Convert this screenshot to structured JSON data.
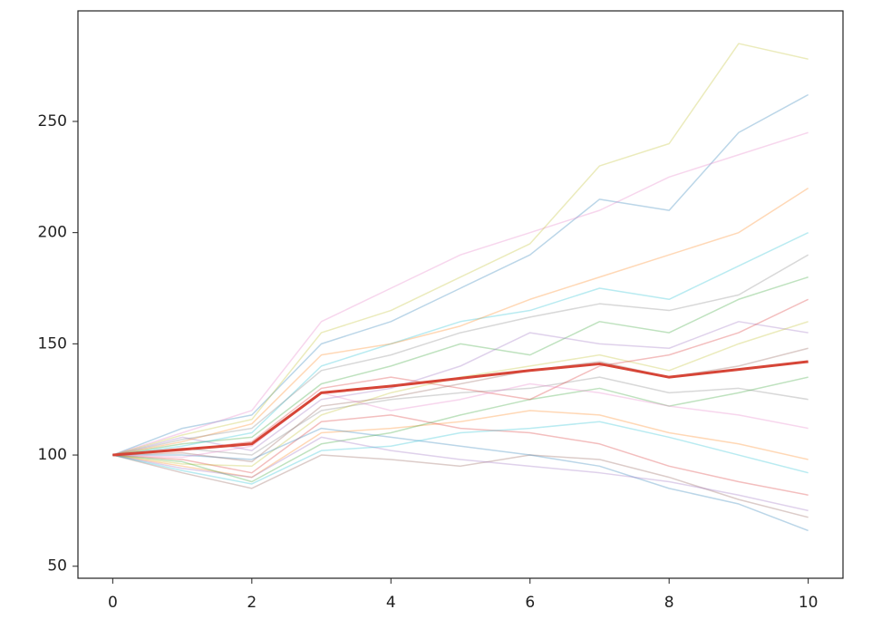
{
  "chart_data": {
    "type": "line",
    "x": [
      0,
      1,
      2,
      3,
      4,
      5,
      6,
      7,
      8,
      9,
      10
    ],
    "xlim": [
      -0.5,
      10.5
    ],
    "xticks": [
      0,
      2,
      4,
      6,
      8,
      10
    ],
    "ylim": [
      44.6,
      299.7
    ],
    "yticks": [
      50,
      100,
      150,
      200,
      250
    ],
    "series": [
      {
        "color": "#1f77b4",
        "values": [
          100,
          112,
          118,
          150,
          160,
          175,
          190,
          215,
          210,
          245,
          262
        ]
      },
      {
        "color": "#ff7f0e",
        "values": [
          100,
          95,
          90,
          110,
          112,
          115,
          120,
          118,
          110,
          105,
          98
        ]
      },
      {
        "color": "#2ca02c",
        "values": [
          100,
          105,
          108,
          132,
          140,
          150,
          145,
          160,
          155,
          170,
          180
        ]
      },
      {
        "color": "#d62728",
        "values": [
          100,
          98,
          92,
          115,
          118,
          112,
          110,
          105,
          95,
          88,
          82
        ]
      },
      {
        "color": "#9467bd",
        "values": [
          100,
          108,
          102,
          125,
          130,
          140,
          155,
          150,
          148,
          160,
          155
        ]
      },
      {
        "color": "#8c564b",
        "values": [
          100,
          92,
          85,
          100,
          98,
          95,
          100,
          98,
          90,
          80,
          72
        ]
      },
      {
        "color": "#e377c2",
        "values": [
          100,
          110,
          120,
          160,
          175,
          190,
          200,
          210,
          225,
          235,
          245
        ]
      },
      {
        "color": "#7f7f7f",
        "values": [
          100,
          103,
          100,
          120,
          125,
          128,
          130,
          135,
          128,
          130,
          125
        ]
      },
      {
        "color": "#bcbd22",
        "values": [
          100,
          96,
          95,
          118,
          128,
          135,
          140,
          145,
          138,
          150,
          160
        ]
      },
      {
        "color": "#17becf",
        "values": [
          100,
          104,
          110,
          140,
          150,
          160,
          165,
          175,
          170,
          185,
          200
        ]
      },
      {
        "color": "#1f77b4",
        "values": [
          100,
          100,
          98,
          112,
          108,
          104,
          100,
          95,
          85,
          78,
          66
        ]
      },
      {
        "color": "#ff7f0e",
        "values": [
          100,
          106,
          114,
          145,
          150,
          158,
          170,
          180,
          190,
          200,
          220
        ]
      },
      {
        "color": "#2ca02c",
        "values": [
          100,
          97,
          88,
          105,
          110,
          118,
          125,
          130,
          122,
          128,
          135
        ]
      },
      {
        "color": "#d62728",
        "values": [
          100,
          102,
          106,
          130,
          135,
          130,
          125,
          140,
          145,
          155,
          170
        ]
      },
      {
        "color": "#9467bd",
        "values": [
          100,
          94,
          90,
          108,
          102,
          98,
          95,
          92,
          88,
          82,
          75
        ]
      },
      {
        "color": "#bcbd22",
        "values": [
          100,
          109,
          116,
          155,
          165,
          180,
          195,
          230,
          240,
          285,
          278
        ]
      },
      {
        "color": "#8c564b",
        "values": [
          100,
          101,
          97,
          122,
          126,
          132,
          138,
          142,
          135,
          140,
          148
        ]
      },
      {
        "color": "#e377c2",
        "values": [
          100,
          99,
          104,
          128,
          120,
          125,
          132,
          128,
          122,
          118,
          112
        ]
      },
      {
        "color": "#7f7f7f",
        "values": [
          100,
          107,
          112,
          138,
          145,
          155,
          162,
          168,
          165,
          172,
          190
        ]
      },
      {
        "color": "#17becf",
        "values": [
          100,
          93,
          87,
          102,
          104,
          110,
          112,
          115,
          108,
          100,
          92
        ]
      },
      {
        "color": "#d64537",
        "values": [
          100,
          102.5,
          105,
          128,
          131,
          134.5,
          138,
          141,
          135,
          138.5,
          142
        ]
      }
    ]
  }
}
